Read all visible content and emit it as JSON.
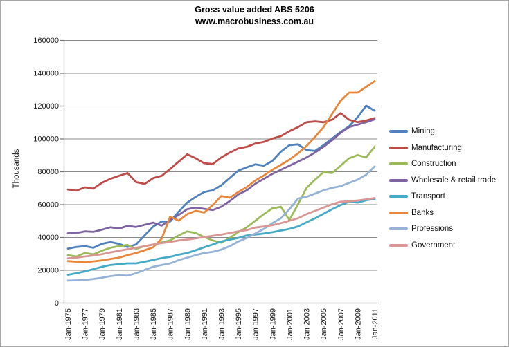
{
  "chart_data": {
    "type": "line",
    "title": "Gross value added ABS 5206",
    "subtitle": "www.macrobusiness.com.au",
    "xlabel": "",
    "ylabel": "Thousands",
    "ylim": [
      0,
      160000
    ],
    "ytick_step": 20000,
    "grid": true,
    "legend_position": "right",
    "x_tick_labels": [
      "Jan-1975",
      "Jan-1977",
      "Jan-1979",
      "Jan-1981",
      "Jan-1983",
      "Jan-1985",
      "Jan-1987",
      "Jan-1989",
      "Jan-1991",
      "Jan-1993",
      "Jan-1995",
      "Jan-1997",
      "Jan-1999",
      "Jan-2001",
      "Jan-2003",
      "Jan-2005",
      "Jan-2007",
      "Jan-2009",
      "Jan-2011"
    ],
    "years": [
      1975,
      1976,
      1977,
      1978,
      1979,
      1980,
      1981,
      1982,
      1983,
      1984,
      1985,
      1986,
      1987,
      1988,
      1989,
      1990,
      1991,
      1992,
      1993,
      1994,
      1995,
      1996,
      1997,
      1998,
      1999,
      2000,
      2001,
      2002,
      2003,
      2004,
      2005,
      2006,
      2007,
      2008,
      2009,
      2010,
      2011
    ],
    "series": [
      {
        "id": "mining",
        "name": "Mining",
        "color": "#4F81BD",
        "values": [
          33000,
          34000,
          34500,
          33500,
          35900,
          37000,
          35900,
          34000,
          35500,
          41000,
          46400,
          49500,
          49500,
          55500,
          61000,
          64500,
          67500,
          68500,
          71500,
          76000,
          80500,
          82500,
          84300,
          83500,
          86400,
          92000,
          96000,
          96500,
          93000,
          92500,
          96000,
          100000,
          104000,
          107500,
          113000,
          120000,
          117000
        ]
      },
      {
        "id": "manufacturing",
        "name": "Manufacturing",
        "color": "#BE4B48",
        "values": [
          69000,
          68300,
          70300,
          69500,
          73100,
          75500,
          77300,
          79000,
          73500,
          72400,
          75900,
          77300,
          81500,
          86000,
          90400,
          88000,
          85000,
          84500,
          88500,
          91500,
          94000,
          95000,
          97000,
          98000,
          100000,
          101500,
          104500,
          107000,
          110000,
          110500,
          110000,
          111500,
          115500,
          111500,
          110000,
          111000,
          112500
        ]
      },
      {
        "id": "construction",
        "name": "Construction",
        "color": "#9BBB59",
        "values": [
          29000,
          28200,
          30300,
          29500,
          31700,
          33500,
          34500,
          35200,
          32800,
          34500,
          35500,
          36800,
          38000,
          41000,
          43500,
          42500,
          40000,
          38000,
          36600,
          39500,
          43000,
          46000,
          50000,
          54000,
          57500,
          58500,
          50500,
          60000,
          70000,
          75000,
          79500,
          79000,
          83500,
          88000,
          90000,
          88500,
          95000
        ]
      },
      {
        "id": "wholesale-retail",
        "name": "Wholesale & retail trade",
        "color": "#7E62A1",
        "values": [
          42300,
          42500,
          43500,
          43200,
          44500,
          46000,
          45200,
          46800,
          46200,
          47500,
          48800,
          47000,
          50500,
          53500,
          57000,
          58000,
          57200,
          56500,
          58500,
          62000,
          66000,
          68500,
          72500,
          75500,
          78500,
          81000,
          83500,
          86000,
          88500,
          91500,
          95000,
          99000,
          103500,
          107000,
          108500,
          110000,
          111700
        ]
      },
      {
        "id": "transport",
        "name": "Transport",
        "color": "#45AAC5",
        "values": [
          17000,
          18000,
          19100,
          20500,
          21900,
          23000,
          23500,
          24000,
          24000,
          25000,
          26100,
          27200,
          28000,
          29300,
          30300,
          32000,
          33800,
          35500,
          37300,
          38500,
          39500,
          41000,
          41500,
          42200,
          43000,
          44000,
          45000,
          46500,
          49000,
          51500,
          54200,
          57000,
          59500,
          61500,
          61000,
          62500,
          63300
        ]
      },
      {
        "id": "banks",
        "name": "Banks",
        "color": "#E8873C",
        "values": [
          25400,
          25000,
          24700,
          25200,
          25800,
          26700,
          27500,
          29000,
          30300,
          32000,
          33800,
          39000,
          52500,
          50000,
          54000,
          56000,
          55000,
          59500,
          65000,
          64000,
          67500,
          70500,
          74500,
          77500,
          81000,
          84000,
          87200,
          91000,
          95500,
          101000,
          107000,
          115000,
          123000,
          128000,
          128000,
          131500,
          135000
        ]
      },
      {
        "id": "professions",
        "name": "Professions",
        "color": "#95B3D7",
        "values": [
          13500,
          13700,
          13900,
          14500,
          15300,
          16200,
          16800,
          16500,
          18000,
          20000,
          21900,
          23000,
          24000,
          26000,
          27500,
          29000,
          30300,
          31000,
          32400,
          34500,
          37300,
          39500,
          42200,
          45000,
          48500,
          51500,
          57000,
          63500,
          64500,
          66500,
          68500,
          70000,
          71000,
          73000,
          75000,
          78000,
          83000
        ]
      },
      {
        "id": "government",
        "name": "Government",
        "color": "#D99694",
        "values": [
          27100,
          27500,
          28200,
          28800,
          29600,
          30700,
          31700,
          32600,
          33500,
          34500,
          35500,
          36400,
          37000,
          38000,
          38500,
          39200,
          40000,
          40800,
          41500,
          42500,
          43500,
          44300,
          45800,
          46500,
          47300,
          48500,
          50000,
          51500,
          54000,
          56000,
          58000,
          60000,
          61500,
          61800,
          62300,
          63000,
          63800
        ]
      }
    ]
  }
}
